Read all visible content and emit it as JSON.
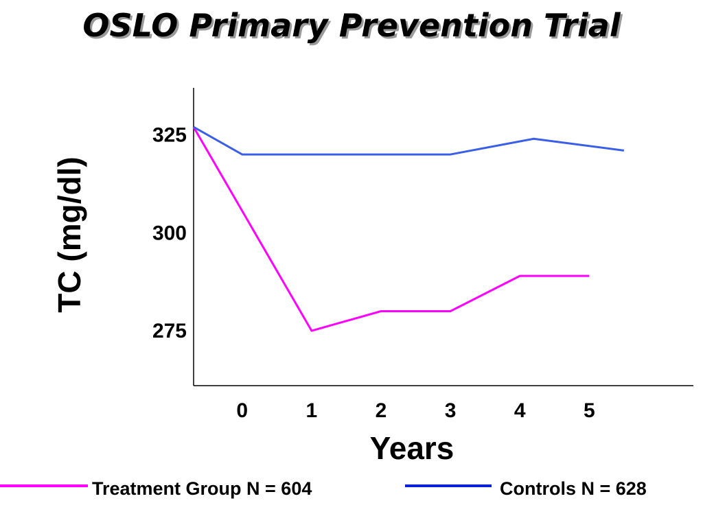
{
  "chart_data": {
    "type": "line",
    "title": "OSLO Primary Prevention Trial",
    "xlabel": "Years",
    "ylabel": "TC (mg/dl)",
    "x_ticks": [
      "0",
      "1",
      "2",
      "3",
      "4",
      "5"
    ],
    "y_ticks": [
      325,
      300,
      275
    ],
    "xlim": [
      -0.7,
      6.5
    ],
    "ylim": [
      261,
      337
    ],
    "grid": false,
    "legend_position": "bottom",
    "series": [
      {
        "name": "Treatment Group N = 604",
        "color": "#ff00ff",
        "x": [
          -0.7,
          1.0,
          2.0,
          3.0,
          4.0,
          5.0
        ],
        "y": [
          327,
          275,
          280,
          280,
          289,
          289
        ]
      },
      {
        "name": "Controls N = 628",
        "color": "#3a5fe6",
        "legend_color": "#0a22d6",
        "x": [
          -0.7,
          0.0,
          1.0,
          2.0,
          3.0,
          4.2,
          5.5
        ],
        "y": [
          327,
          320,
          320,
          320,
          320,
          324,
          321
        ]
      }
    ]
  }
}
